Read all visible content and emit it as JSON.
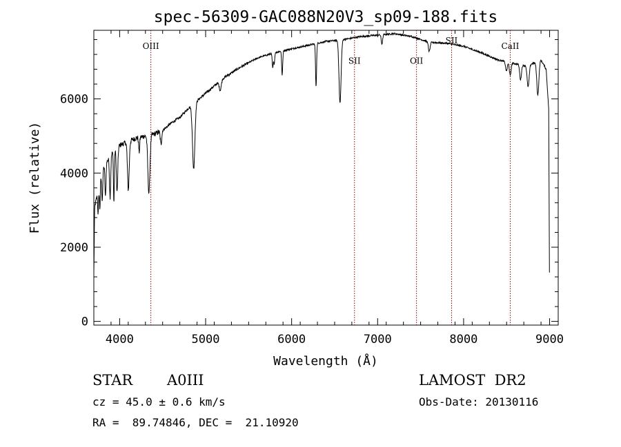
{
  "chart_data": {
    "type": "line",
    "title": "spec-56309-GAC088N20V3_sp09-188.fits",
    "xlabel": "Wavelength (Å)",
    "ylabel": "Flux (relative)",
    "xlim": [
      3700,
      9100
    ],
    "ylim": [
      -100,
      7850
    ],
    "xticks": [
      4000,
      5000,
      6000,
      7000,
      8000,
      9000
    ],
    "xtick_labels": [
      "4000",
      "5000",
      "6000",
      "7000",
      "8000",
      "9000"
    ],
    "yticks": [
      0,
      2000,
      4000,
      6000
    ],
    "ytick_labels": [
      "0",
      "2000",
      "4000",
      "6000"
    ],
    "grid": false,
    "line_color": "#000000",
    "marker_color": "#8b0000",
    "lines": [
      {
        "label": "OIII",
        "x": 4363,
        "label_y": 7350
      },
      {
        "label": "SII",
        "x": 6731,
        "label_y": 6950
      },
      {
        "label": "OII",
        "x": 7452,
        "label_y": 6950
      },
      {
        "label": "SII",
        "x": 7860,
        "label_y": 7500
      },
      {
        "label": "CaII",
        "x": 8542,
        "label_y": 7350
      }
    ],
    "continuum": [
      [
        3700,
        1300
      ],
      [
        3710,
        3100
      ],
      [
        3750,
        3500
      ],
      [
        3800,
        4100
      ],
      [
        3900,
        4500
      ],
      [
        4000,
        4750
      ],
      [
        4200,
        4950
      ],
      [
        4400,
        5050
      ],
      [
        4500,
        5150
      ],
      [
        4600,
        5350
      ],
      [
        4700,
        5500
      ],
      [
        4800,
        5750
      ],
      [
        5000,
        6150
      ],
      [
        5200,
        6550
      ],
      [
        5400,
        6850
      ],
      [
        5600,
        7100
      ],
      [
        5800,
        7250
      ],
      [
        6000,
        7350
      ],
      [
        6200,
        7450
      ],
      [
        6400,
        7550
      ],
      [
        6600,
        7600
      ],
      [
        6800,
        7680
      ],
      [
        7000,
        7720
      ],
      [
        7200,
        7760
      ],
      [
        7400,
        7680
      ],
      [
        7600,
        7530
      ],
      [
        7800,
        7500
      ],
      [
        8000,
        7420
      ],
      [
        8200,
        7250
      ],
      [
        8400,
        7050
      ],
      [
        8600,
        6950
      ],
      [
        8700,
        6900
      ],
      [
        8800,
        6950
      ],
      [
        8900,
        7050
      ],
      [
        8960,
        6800
      ],
      [
        8990,
        5700
      ],
      [
        8998,
        1300
      ]
    ],
    "absorption": [
      {
        "x": 3750,
        "depth": 600,
        "width": 5
      },
      {
        "x": 3770,
        "depth": 700,
        "width": 5
      },
      {
        "x": 3798,
        "depth": 800,
        "width": 6
      },
      {
        "x": 3835,
        "depth": 900,
        "width": 6
      },
      {
        "x": 3889,
        "depth": 1100,
        "width": 7
      },
      {
        "x": 3933,
        "depth": 1400,
        "width": 5
      },
      {
        "x": 3970,
        "depth": 1200,
        "width": 8
      },
      {
        "x": 4101,
        "depth": 1300,
        "width": 10
      },
      {
        "x": 4227,
        "depth": 400,
        "width": 6
      },
      {
        "x": 4340,
        "depth": 1550,
        "width": 12
      },
      {
        "x": 4481,
        "depth": 350,
        "width": 8
      },
      {
        "x": 4861,
        "depth": 1750,
        "width": 14
      },
      {
        "x": 5170,
        "depth": 250,
        "width": 12
      },
      {
        "x": 5780,
        "depth": 400,
        "width": 6
      },
      {
        "x": 5797,
        "depth": 300,
        "width": 6
      },
      {
        "x": 5890,
        "depth": 650,
        "width": 6
      },
      {
        "x": 6284,
        "depth": 1150,
        "width": 6
      },
      {
        "x": 6563,
        "depth": 1700,
        "width": 12
      },
      {
        "x": 7050,
        "depth": 250,
        "width": 8
      },
      {
        "x": 7600,
        "depth": 250,
        "width": 10
      },
      {
        "x": 8498,
        "depth": 250,
        "width": 10
      },
      {
        "x": 8542,
        "depth": 350,
        "width": 10
      },
      {
        "x": 8662,
        "depth": 400,
        "width": 10
      },
      {
        "x": 8750,
        "depth": 600,
        "width": 12
      },
      {
        "x": 8863,
        "depth": 900,
        "width": 12
      }
    ]
  },
  "info": {
    "star_type": "STAR",
    "spectral_class": "A0III",
    "survey": "LAMOST  DR2",
    "cz": "cz = 45.0 ± 0.6 km/s",
    "obs_date": "Obs-Date: 20130116",
    "coords": "RA =  89.74846, DEC =  21.10920"
  }
}
